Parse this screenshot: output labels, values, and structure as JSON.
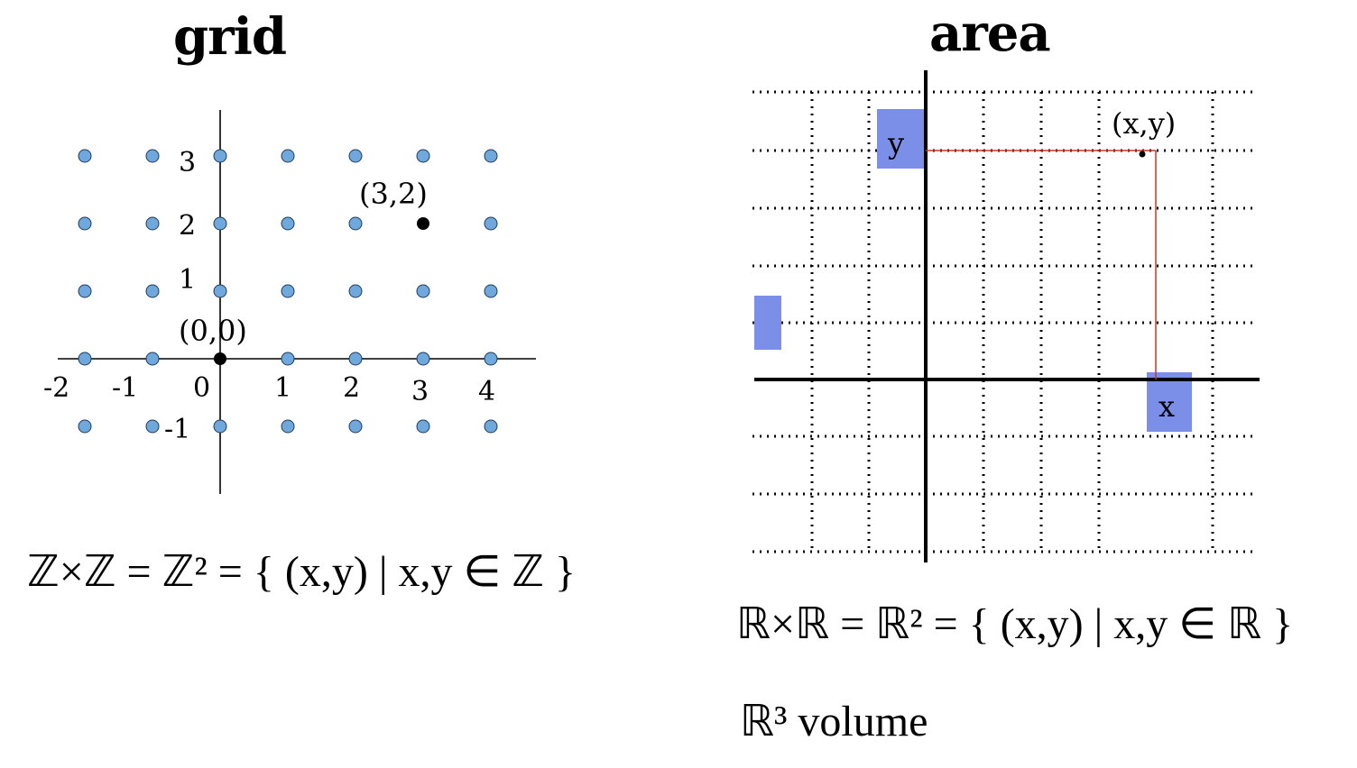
{
  "grid_panel": {
    "title": "grid",
    "x_ticks": [
      "-2",
      "-1",
      "0",
      "1",
      "2",
      "3",
      "4"
    ],
    "y_ticks": [
      "3",
      "2",
      "1",
      "-1"
    ],
    "origin_label": "(0,0)",
    "point_label": "(3,2)",
    "lattice_color": "#6fa8dc",
    "highlight_color": "#000000",
    "formula": "ℤ×ℤ = ℤ² = { (x,y) | x,y ∈ ℤ }"
  },
  "area_panel": {
    "title": "area",
    "point_label": "(x,y)",
    "y_box_label": "y",
    "x_box_label": "x",
    "box_color": "#7b8fe8",
    "projection_color": "#c0392b",
    "formula": "ℝ×ℝ = ℝ² = { (x,y) | x,y ∈ ℝ }",
    "volume_text": "ℝ³ volume"
  }
}
